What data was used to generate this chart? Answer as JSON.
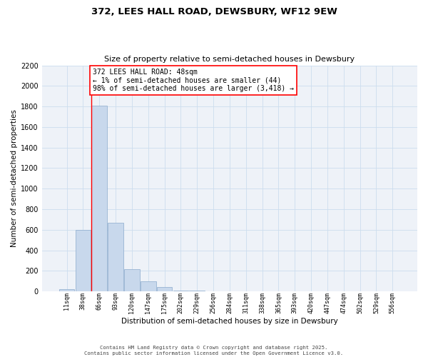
{
  "title": "372, LEES HALL ROAD, DEWSBURY, WF12 9EW",
  "subtitle": "Size of property relative to semi-detached houses in Dewsbury",
  "xlabel": "Distribution of semi-detached houses by size in Dewsbury",
  "ylabel": "Number of semi-detached properties",
  "bar_values": [
    20,
    600,
    1810,
    670,
    215,
    95,
    40,
    10,
    5,
    2,
    1,
    0,
    0,
    0,
    0,
    0,
    0,
    0,
    0,
    0,
    0
  ],
  "bar_labels": [
    "11sqm",
    "38sqm",
    "66sqm",
    "93sqm",
    "120sqm",
    "147sqm",
    "175sqm",
    "202sqm",
    "229sqm",
    "256sqm",
    "284sqm",
    "311sqm",
    "338sqm",
    "365sqm",
    "393sqm",
    "420sqm",
    "447sqm",
    "474sqm",
    "502sqm",
    "529sqm",
    "556sqm"
  ],
  "bar_color": "#c8d8ec",
  "bar_edge_color": "#8aaacc",
  "grid_color": "#ccddee",
  "background_color": "#eef2f8",
  "annotation_text": "372 LEES HALL ROAD: 48sqm\n← 1% of semi-detached houses are smaller (44)\n98% of semi-detached houses are larger (3,418) →",
  "vline_x": 1.5,
  "ylim": [
    0,
    2200
  ],
  "yticks": [
    0,
    200,
    400,
    600,
    800,
    1000,
    1200,
    1400,
    1600,
    1800,
    2000,
    2200
  ],
  "footer_line1": "Contains HM Land Registry data © Crown copyright and database right 2025.",
  "footer_line2": "Contains public sector information licensed under the Open Government Licence v3.0."
}
